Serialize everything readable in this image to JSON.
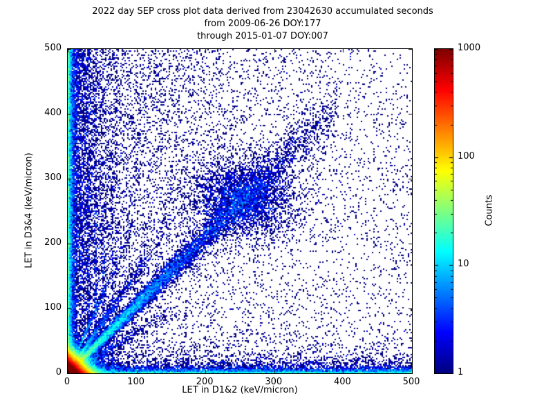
{
  "chart_data": {
    "type": "heatmap",
    "title_lines": [
      "2022 day SEP cross plot data derived from 23042630 accumulated seconds",
      "from 2009-06-26 DOY:177",
      "through 2015-01-07 DOY:007"
    ],
    "xlabel": "LET in D1&2 (keV/micron)",
    "ylabel": "LET in D3&4 (keV/micron)",
    "xlim": [
      0,
      500
    ],
    "ylim": [
      0,
      500
    ],
    "xticks": [
      0,
      100,
      200,
      300,
      400,
      500
    ],
    "yticks": [
      0,
      100,
      200,
      300,
      400,
      500
    ],
    "grid": false,
    "background": "#ffffff",
    "colormap": "jet",
    "colorbar": {
      "label": "Counts",
      "scale": "log",
      "min": 1,
      "max": 1000,
      "ticks": [
        1,
        10,
        100,
        1000
      ],
      "tick_labels": [
        "1",
        "10",
        "100",
        "1000"
      ]
    },
    "seed": 20220107,
    "density_features": [
      {
        "name": "origin-hotspot",
        "type": "exp2d",
        "n": 120000,
        "x_scale": 7,
        "y_scale": 7
      },
      {
        "name": "left-vertical-band",
        "type": "vband",
        "n": 9000,
        "x_scale": 3,
        "y_min": 0,
        "y_max": 500
      },
      {
        "name": "left-scatter-band",
        "type": "vband",
        "n": 4000,
        "x_scale": 18,
        "y_min": 0,
        "y_max": 500
      },
      {
        "name": "bottom-horizontal-band",
        "type": "hband",
        "n": 6000,
        "y_scale": 3,
        "x_min": 0,
        "x_max": 500
      },
      {
        "name": "bottom-scatter-band",
        "type": "hband",
        "n": 2500,
        "y_scale": 14,
        "x_min": 0,
        "x_max": 500
      },
      {
        "name": "main-diagonal-band",
        "type": "diagonal",
        "n": 10000,
        "x_scale": 140,
        "x_max": 390,
        "slope": 1.05,
        "spread_base": 2.5,
        "spread_grow": 0.05
      },
      {
        "name": "diagonal-mid-blob",
        "type": "blob",
        "n": 3500,
        "cx": 255,
        "cy": 270,
        "x_sigma": 38,
        "y_sigma": 30
      },
      {
        "name": "steep-ray",
        "type": "diagonal",
        "n": 1500,
        "x_scale": 45,
        "x_max": 150,
        "slope": 1.55,
        "spread_base": 1.5,
        "spread_grow": 0.06
      },
      {
        "name": "steeper-ray",
        "type": "diagonal",
        "n": 700,
        "x_scale": 30,
        "x_max": 100,
        "slope": 2.4,
        "spread_base": 1.5,
        "spread_grow": 0.05
      },
      {
        "name": "shallow-ray",
        "type": "diagonal",
        "n": 700,
        "x_scale": 55,
        "x_max": 160,
        "slope": 0.62,
        "spread_base": 1.5,
        "spread_grow": 0.04
      },
      {
        "name": "vertical-streak-1",
        "type": "vstreak",
        "n": 350,
        "x": 30,
        "y_scale": 160
      },
      {
        "name": "vertical-streak-2",
        "type": "vstreak",
        "n": 300,
        "x": 40,
        "y_scale": 140
      },
      {
        "name": "vertical-streak-3",
        "type": "vstreak",
        "n": 250,
        "x": 52,
        "y_scale": 130
      },
      {
        "name": "vertical-streak-4",
        "type": "vstreak",
        "n": 200,
        "x": 65,
        "y_scale": 120
      },
      {
        "name": "upper-left-scatter",
        "type": "expx_uniform_y",
        "n": 2200,
        "x_scale": 70,
        "y_min": 150,
        "y_max": 500
      },
      {
        "name": "left-weighted-background",
        "type": "expx_uniform_y",
        "n": 5000,
        "x_scale": 200,
        "y_min": 0,
        "y_max": 500
      },
      {
        "name": "uniform-background",
        "type": "uniform",
        "n": 3000,
        "x_min": 0,
        "x_max": 500,
        "y_min": 0,
        "y_max": 500
      }
    ]
  }
}
